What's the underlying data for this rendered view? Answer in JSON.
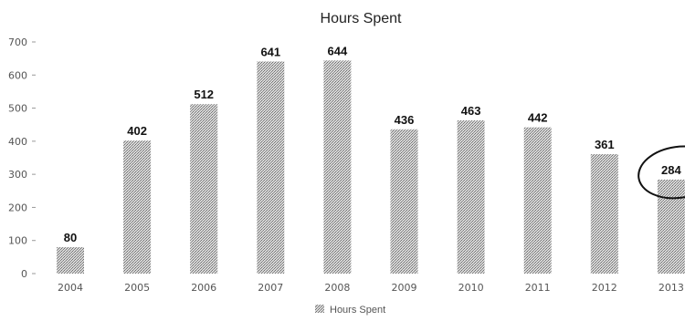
{
  "chart_data": {
    "type": "bar",
    "title": "Hours Spent",
    "categories": [
      "2004",
      "2005",
      "2006",
      "2007",
      "2008",
      "2009",
      "2010",
      "2011",
      "2012",
      "2013"
    ],
    "series": [
      {
        "name": "Hours Spent",
        "values": [
          80,
          402,
          512,
          641,
          644,
          436,
          463,
          442,
          361,
          284
        ]
      }
    ],
    "y_ticks": [
      "0",
      "100",
      "200",
      "300",
      "400",
      "500",
      "600",
      "700"
    ],
    "ylim": [
      0,
      700
    ],
    "xlabel": "",
    "ylabel": "",
    "grid": false,
    "legend_position": "bottom",
    "bar_color": "#a6a6a6",
    "annotation": {
      "type": "circle",
      "target_category": "2013"
    }
  }
}
